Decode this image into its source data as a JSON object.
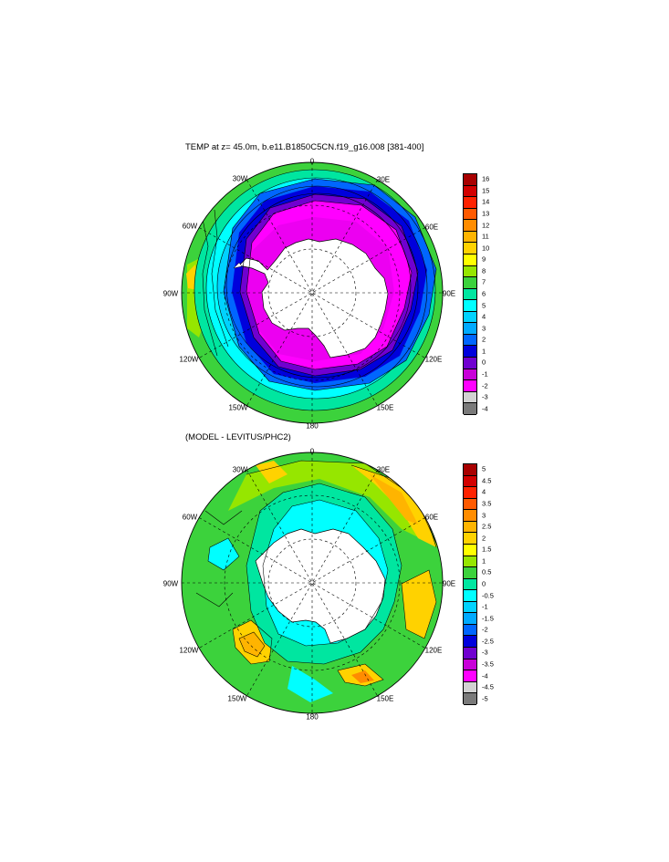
{
  "panel1": {
    "title": "TEMP at z=  45.0m, b.e11.B1850C5CN.f19_g16.008 [381-400]",
    "lon_labels": [
      "0",
      "30E",
      "60E",
      "90E",
      "120E",
      "150E",
      "180",
      "150W",
      "120W",
      "90W",
      "60W",
      "30W"
    ],
    "colorbar_labels": [
      "16",
      "15",
      "14",
      "13",
      "12",
      "11",
      "10",
      "9",
      "8",
      "7",
      "6",
      "5",
      "4",
      "3",
      "2",
      "1",
      "0",
      "-1",
      "-2",
      "-3",
      "-4"
    ],
    "colors": [
      "#a80000",
      "#d20000",
      "#ff2200",
      "#ff5a00",
      "#ff8c00",
      "#ffb400",
      "#ffd200",
      "#ffff00",
      "#96e600",
      "#3cd23c",
      "#00e6a0",
      "#00ffff",
      "#00d2ff",
      "#00aaff",
      "#0066ff",
      "#0000dc",
      "#7000d0",
      "#c800d8",
      "#ff00ff",
      "#d2d2d2",
      "#7a7a7a"
    ]
  },
  "panel2": {
    "title": "(MODEL - LEVITUS/PHC2)",
    "lon_labels": [
      "0",
      "30E",
      "60E",
      "90E",
      "120E",
      "150E",
      "180",
      "150W",
      "120W",
      "90W",
      "60W",
      "30W"
    ],
    "colorbar_labels": [
      "5",
      "4.5",
      "4",
      "3.5",
      "3",
      "2.5",
      "2",
      "1.5",
      "1",
      "0.5",
      "0",
      "-0.5",
      "-1",
      "-1.5",
      "-2",
      "-2.5",
      "-3",
      "-3.5",
      "-4",
      "-4.5",
      "-5"
    ],
    "colors": [
      "#a80000",
      "#d20000",
      "#ff2200",
      "#ff5a00",
      "#ff8c00",
      "#ffb400",
      "#ffd200",
      "#ffff00",
      "#96e600",
      "#3cd23c",
      "#00e6a0",
      "#00ffff",
      "#00d2ff",
      "#00aaff",
      "#0066ff",
      "#0000dc",
      "#7000d0",
      "#c800d8",
      "#ff00ff",
      "#d2d2d2",
      "#7a7a7a"
    ]
  }
}
